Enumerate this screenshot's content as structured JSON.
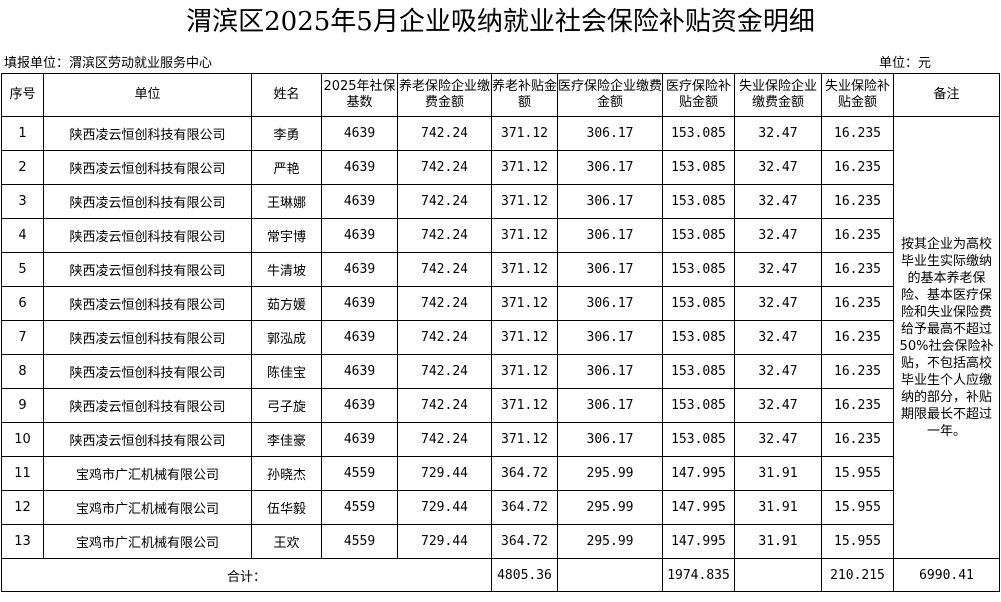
{
  "title": "渭滨区2025年5月企业吸纳就业社会保险补贴资金明细",
  "filler": "填报单位：渭滨区劳动就业服务中心",
  "unit": "单位：元",
  "headers": [
    "序号",
    "单位",
    "姓名",
    "2025年社保基数",
    "养老保险企业缴费金额",
    "养老补贴金额",
    "医疗保险企业缴费金额",
    "医疗保险补贴金额",
    "失业保险企业缴费金额",
    "失业保险补贴金额",
    "备注"
  ],
  "rows": [
    [
      "1",
      "陕西凌云恒创科技有限公司",
      "李勇",
      "4639",
      "742.24",
      "371.12",
      "306.17",
      "153.085",
      "32.47",
      "16.235"
    ],
    [
      "2",
      "陕西凌云恒创科技有限公司",
      "严艳",
      "4639",
      "742.24",
      "371.12",
      "306.17",
      "153.085",
      "32.47",
      "16.235"
    ],
    [
      "3",
      "陕西凌云恒创科技有限公司",
      "王琳娜",
      "4639",
      "742.24",
      "371.12",
      "306.17",
      "153.085",
      "32.47",
      "16.235"
    ],
    [
      "4",
      "陕西凌云恒创科技有限公司",
      "常宇博",
      "4639",
      "742.24",
      "371.12",
      "306.17",
      "153.085",
      "32.47",
      "16.235"
    ],
    [
      "5",
      "陕西凌云恒创科技有限公司",
      "牛清坡",
      "4639",
      "742.24",
      "371.12",
      "306.17",
      "153.085",
      "32.47",
      "16.235"
    ],
    [
      "6",
      "陕西凌云恒创科技有限公司",
      "茹方媛",
      "4639",
      "742.24",
      "371.12",
      "306.17",
      "153.085",
      "32.47",
      "16.235"
    ],
    [
      "7",
      "陕西凌云恒创科技有限公司",
      "郭泓成",
      "4639",
      "742.24",
      "371.12",
      "306.17",
      "153.085",
      "32.47",
      "16.235"
    ],
    [
      "8",
      "陕西凌云恒创科技有限公司",
      "陈佳宝",
      "4639",
      "742.24",
      "371.12",
      "306.17",
      "153.085",
      "32.47",
      "16.235"
    ],
    [
      "9",
      "陕西凌云恒创科技有限公司",
      "弓子旋",
      "4639",
      "742.24",
      "371.12",
      "306.17",
      "153.085",
      "32.47",
      "16.235"
    ],
    [
      "10",
      "陕西凌云恒创科技有限公司",
      "李佳豪",
      "4639",
      "742.24",
      "371.12",
      "306.17",
      "153.085",
      "32.47",
      "16.235"
    ],
    [
      "11",
      "宝鸡市广汇机械有限公司",
      "孙晓杰",
      "4559",
      "729.44",
      "364.72",
      "295.99",
      "147.995",
      "31.91",
      "15.955"
    ],
    [
      "12",
      "宝鸡市广汇机械有限公司",
      "伍华毅",
      "4559",
      "729.44",
      "364.72",
      "295.99",
      "147.995",
      "31.91",
      "15.955"
    ],
    [
      "13",
      "宝鸡市广汇机械有限公司",
      "王欢",
      "4559",
      "729.44",
      "364.72",
      "295.99",
      "147.995",
      "31.91",
      "15.955"
    ]
  ],
  "note": "按其企业为高校毕业生实际缴纳的基本养老保险、基本医疗保险和失业保险费给予最高不超过50%社会保险补贴，不包括高校毕业生个人应缴纳的部分，补贴期限最长不超过一年。",
  "footer": {
    "label": "合计：",
    "pension_subsidy_total": "4805.36",
    "medical_subsidy_total": "1974.835",
    "unemployment_subsidy_total": "210.215",
    "grand_total": "6990.41"
  }
}
